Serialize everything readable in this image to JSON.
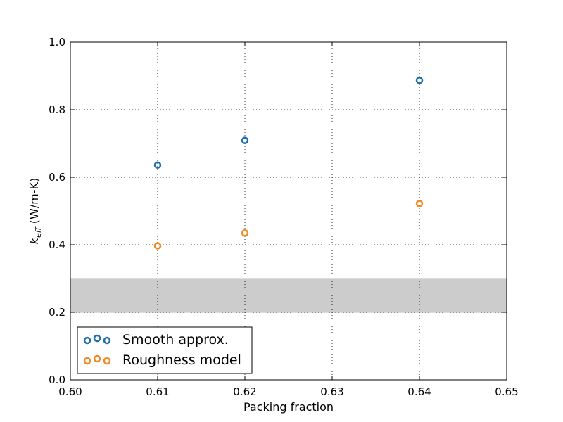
{
  "chart_data": {
    "type": "scatter",
    "xlabel": "Packing fraction",
    "ylabel": "(W/m-K)",
    "ylabel_symbol": "k",
    "ylabel_subscript": "eff",
    "xlim": [
      0.6,
      0.65
    ],
    "ylim": [
      0.0,
      1.0
    ],
    "xticks": [
      "0.60",
      "0.61",
      "0.62",
      "0.63",
      "0.64",
      "0.65"
    ],
    "yticks": [
      "0.0",
      "0.2",
      "0.4",
      "0.6",
      "0.8",
      "1.0"
    ],
    "grid": true,
    "grid_style": "dotted",
    "legend_position": "lower-left",
    "shaded_band": {
      "y_range": [
        0.2,
        0.3
      ],
      "color": "#cccccc"
    },
    "series": [
      {
        "name": "Smooth approx.",
        "color": "#1f6fa8",
        "marker": "open-circle",
        "x": [
          0.61,
          0.62,
          0.64
        ],
        "y": [
          0.636,
          0.709,
          0.887
        ]
      },
      {
        "name": "Roughness model",
        "color": "#f08a24",
        "marker": "open-circle",
        "x": [
          0.61,
          0.62,
          0.64
        ],
        "y": [
          0.397,
          0.435,
          0.522
        ]
      }
    ]
  }
}
